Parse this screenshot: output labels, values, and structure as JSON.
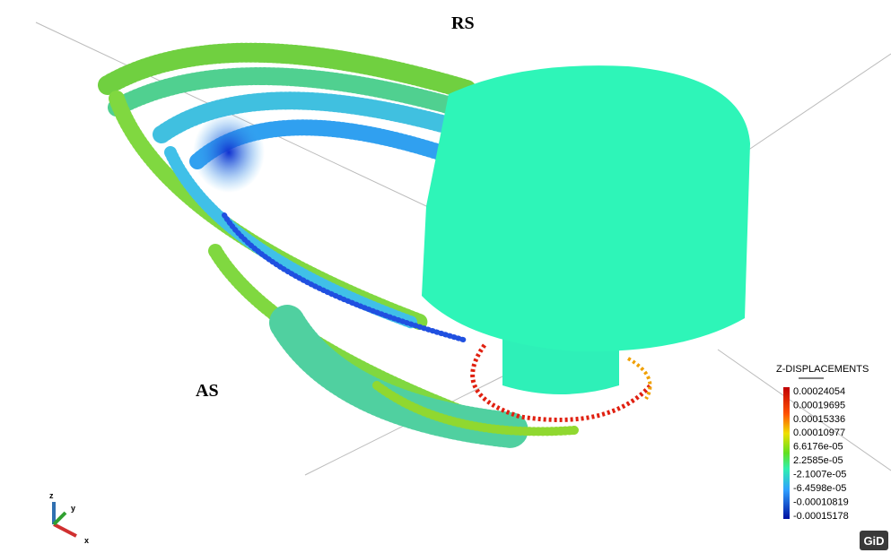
{
  "view": {
    "labels": {
      "top": "RS",
      "left": "AS"
    },
    "legend": {
      "title": "Z-DISPLACEMENTS",
      "values": [
        "0.00024054",
        "0.00019695",
        "0.00015336",
        "0.00010977",
        "6.6176e-05",
        "2.2585e-05",
        "-2.1007e-05",
        "-6.4598e-05",
        "-0.00010819",
        "-0.00015178"
      ]
    },
    "axes": {
      "z": "z",
      "y": "y",
      "x": "x"
    },
    "logo": "GiD"
  }
}
